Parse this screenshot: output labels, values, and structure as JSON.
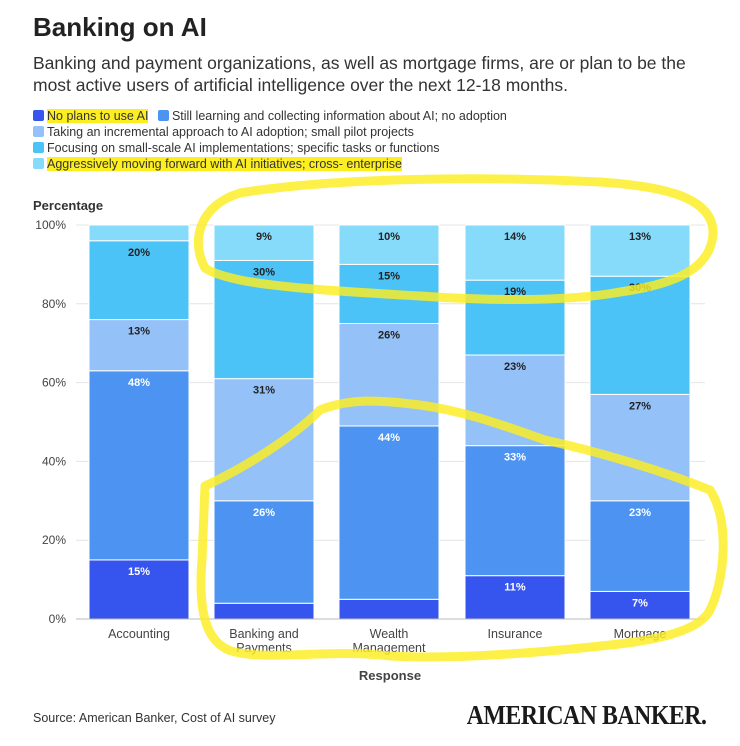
{
  "header": {
    "title": "Banking on AI",
    "subtitle": "Banking and payment organizations, as well as mortgage firms, are or plan to be the most active users of artificial intelligence over the next 12-18 months."
  },
  "footer": {
    "source": "Source: American Banker, Cost of AI survey",
    "brand": "AMERICAN BANKER."
  },
  "colors": {
    "no_plans": "#3654ee",
    "still_learning": "#4d94f2",
    "incremental": "#94c1f7",
    "focusing": "#4cc3f6",
    "aggressive": "#86dbfb",
    "highlighter": "#fcee21"
  },
  "chart_data": {
    "type": "bar",
    "stacked": true,
    "title": "",
    "xlabel": "Response",
    "ylabel": "Percentage",
    "ylim": [
      0,
      100
    ],
    "yticks": [
      "0%",
      "20%",
      "40%",
      "60%",
      "80%",
      "100%"
    ],
    "categories": [
      "Accounting",
      "Banking and Payments",
      "Wealth Management",
      "Insurance",
      "Mortgage"
    ],
    "category_lines": [
      [
        "Accounting"
      ],
      [
        "Banking and",
        "Payments"
      ],
      [
        "Wealth",
        "Management"
      ],
      [
        "Insurance"
      ],
      [
        "Mortgage"
      ]
    ],
    "series": [
      {
        "name": "No plans to use AI",
        "color_key": "no_plans",
        "highlighted": true,
        "values": [
          15,
          4,
          5,
          11,
          7
        ],
        "labels": [
          "15%",
          "",
          "",
          "11%",
          "7%"
        ]
      },
      {
        "name": "Still learning and collecting information about AI; no adoption",
        "color_key": "still_learning",
        "highlighted": false,
        "values": [
          48,
          26,
          44,
          33,
          23
        ],
        "labels": [
          "48%",
          "26%",
          "44%",
          "33%",
          "23%"
        ]
      },
      {
        "name": "Taking an incremental approach to AI adoption; small pilot projects",
        "color_key": "incremental",
        "highlighted": false,
        "values": [
          13,
          31,
          26,
          23,
          27
        ],
        "labels": [
          "13%",
          "31%",
          "26%",
          "23%",
          "27%"
        ]
      },
      {
        "name": "Focusing on small-scale AI implementations; specific tasks or functions",
        "color_key": "focusing",
        "highlighted": false,
        "values": [
          20,
          30,
          15,
          19,
          30
        ],
        "labels": [
          "20%",
          "30%",
          "15%",
          "19%",
          "30%"
        ]
      },
      {
        "name": "Aggressively moving forward with AI initiatives; cross- enterprise",
        "color_key": "aggressive",
        "highlighted": true,
        "values": [
          4,
          9,
          10,
          14,
          13
        ],
        "labels": [
          "",
          "9%",
          "10%",
          "14%",
          "13%"
        ]
      }
    ],
    "legend_position": "top",
    "grid": true
  }
}
